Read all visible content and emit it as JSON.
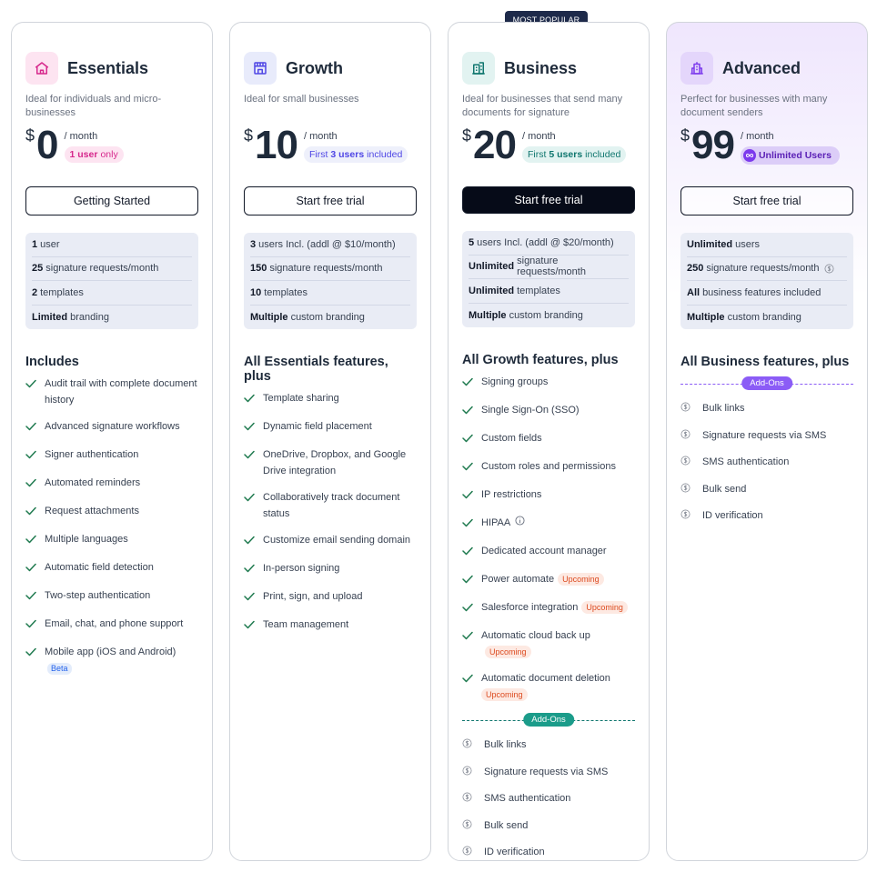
{
  "colors": {
    "essentials_accent": "#d6288c",
    "growth_accent": "#4f46e5",
    "business_accent": "#0f766e",
    "advanced_accent": "#7c3aed",
    "check": "#1f7a4f",
    "upcoming": "#dc4a1f"
  },
  "badge": {
    "most_popular": "MOST POPULAR"
  },
  "plans": [
    {
      "icon": "home-icon",
      "name": "Essentials",
      "desc": "Ideal for individuals and micro-businesses",
      "currency": "$",
      "amount": "0",
      "per": "/ month",
      "pill_bold": "1 user",
      "pill_rest": "only",
      "cta": "Getting Started",
      "limits": [
        {
          "bold": "1",
          "rest": "user"
        },
        {
          "bold": "25",
          "rest": "signature requests/month"
        },
        {
          "bold": "2",
          "rest": "templates"
        },
        {
          "bold": "Limited",
          "rest": "branding"
        }
      ],
      "features_title": "Includes",
      "features": [
        "Audit trail with complete document history",
        "Advanced signature workflows",
        "Signer authentication",
        "Automated reminders",
        "Request attachments",
        "Multiple languages",
        "Automatic field detection",
        "Two-step authentication",
        "Email, chat, and phone support",
        "Mobile app (iOS and Android)"
      ],
      "beta_label": "Beta"
    },
    {
      "icon": "storefront-icon",
      "name": "Growth",
      "desc": "Ideal for small businesses",
      "currency": "$",
      "amount": "10",
      "per": "/ month",
      "pill_pre": "First",
      "pill_bold": "3 users",
      "pill_rest": "included",
      "cta": "Start free trial",
      "limits": [
        {
          "bold": "3",
          "rest": "users Incl. (addl @ $10/month)"
        },
        {
          "bold": "150",
          "rest": "signature requests/month"
        },
        {
          "bold": "10",
          "rest": "templates"
        },
        {
          "bold": "Multiple",
          "rest": "custom branding"
        }
      ],
      "features_title": "All Essentials features, plus",
      "features": [
        "Template sharing",
        "Dynamic field placement",
        "OneDrive, Dropbox, and Google Drive integration",
        "Collaboratively track document status",
        "Customize email sending domain",
        "In-person signing",
        "Print, sign, and upload",
        "Team management"
      ]
    },
    {
      "icon": "office-building-icon",
      "name": "Business",
      "desc": "Ideal for businesses that send many documents for signature",
      "currency": "$",
      "amount": "20",
      "per": "/ month",
      "pill_pre": "First",
      "pill_bold": "5 users",
      "pill_rest": "included",
      "cta": "Start free trial",
      "limits": [
        {
          "bold": "5",
          "rest": "users Incl. (addl @ $20/month)"
        },
        {
          "bold": "Unlimited",
          "rest": "signature requests/month"
        },
        {
          "bold": "Unlimited",
          "rest": "templates"
        },
        {
          "bold": "Multiple",
          "rest": "custom branding"
        }
      ],
      "features_title": "All Growth features, plus",
      "features": [
        "Signing groups",
        "Single Sign-On (SSO)",
        "Custom fields",
        "Custom roles and permissions",
        "IP restrictions",
        "HIPAA",
        "Dedicated account manager",
        "Power automate",
        "Salesforce integration",
        "Automatic cloud back up",
        "Automatic document deletion"
      ],
      "upcoming_label": "Upcoming",
      "addons_label": "Add-Ons",
      "addons": [
        "Bulk links",
        "Signature requests via SMS",
        "SMS authentication",
        "Bulk send",
        "ID verification"
      ]
    },
    {
      "icon": "city-building-icon",
      "name": "Advanced",
      "desc": "Perfect for businesses with many document senders",
      "currency": "$",
      "amount": "99",
      "per": "/ month",
      "pill_bold": "Unlimited Users",
      "cta": "Start free trial",
      "limits": [
        {
          "bold": "Unlimited",
          "rest": "users"
        },
        {
          "bold": "250",
          "rest": "signature requests/month"
        },
        {
          "bold": "All",
          "rest": "business features included"
        },
        {
          "bold": "Multiple",
          "rest": "custom branding"
        }
      ],
      "features_title": "All Business features, plus",
      "addons_label": "Add-Ons",
      "addons": [
        "Bulk links",
        "Signature requests via SMS",
        "SMS authentication",
        "Bulk send",
        "ID verification"
      ]
    }
  ]
}
